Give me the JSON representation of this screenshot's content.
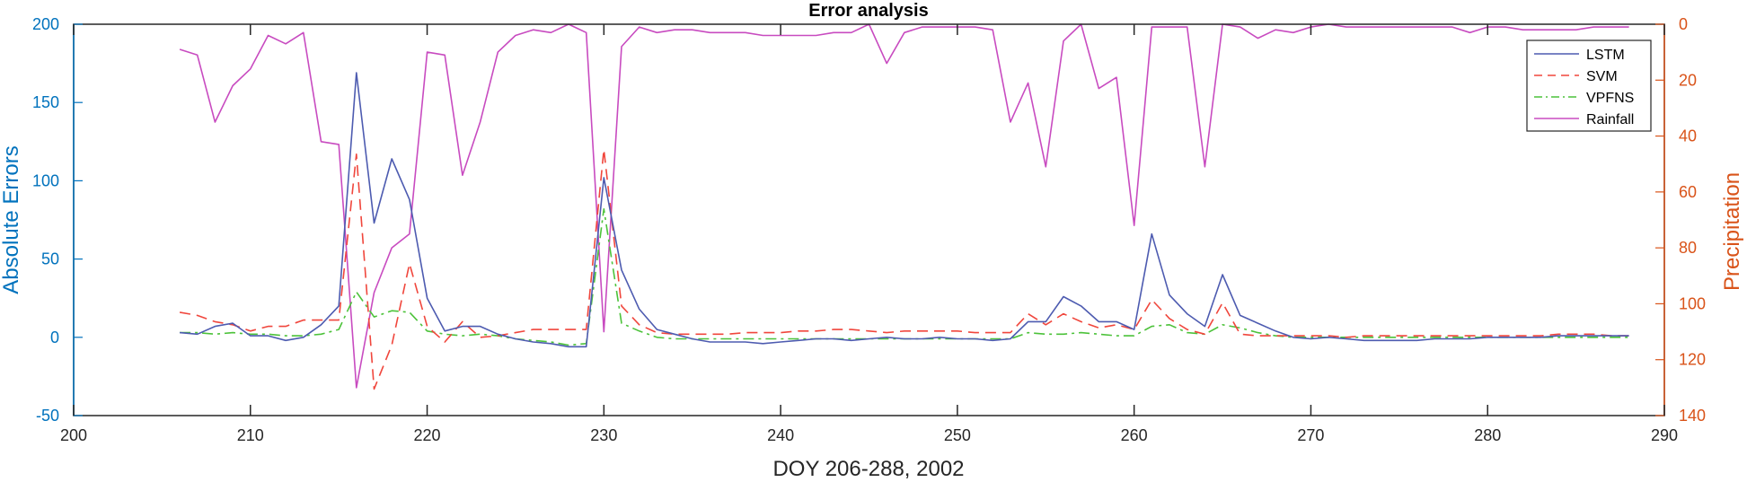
{
  "chart_data": {
    "type": "line",
    "title": "Error analysis",
    "xlabel": "DOY 206-288, 2002",
    "ylabel_left": "Absolute Errors",
    "ylabel_right": "Precipitation",
    "xlim": [
      200,
      290
    ],
    "ylim_left": [
      -50,
      200
    ],
    "ylim_right": [
      0,
      140
    ],
    "right_axis_reversed": true,
    "x_ticks": [
      "200",
      "210",
      "220",
      "230",
      "240",
      "250",
      "260",
      "270",
      "280",
      "290"
    ],
    "y_left_ticks": [
      "200",
      "150",
      "100",
      "50",
      "0",
      "-50"
    ],
    "y_right_ticks": [
      "0",
      "20",
      "40",
      "60",
      "80",
      "100",
      "120",
      "140"
    ],
    "grid": false,
    "legend_position": "top-right",
    "x": [
      206,
      207,
      208,
      209,
      210,
      211,
      212,
      213,
      214,
      215,
      216,
      217,
      218,
      219,
      220,
      221,
      222,
      223,
      224,
      225,
      226,
      227,
      228,
      229,
      230,
      231,
      232,
      233,
      234,
      235,
      236,
      237,
      238,
      239,
      240,
      241,
      242,
      243,
      244,
      245,
      246,
      247,
      248,
      249,
      250,
      251,
      252,
      253,
      254,
      255,
      256,
      257,
      258,
      259,
      260,
      261,
      262,
      263,
      264,
      265,
      266,
      267,
      268,
      269,
      270,
      271,
      272,
      273,
      274,
      275,
      276,
      277,
      278,
      279,
      280,
      281,
      282,
      283,
      284,
      285,
      286,
      287,
      288
    ],
    "series": [
      {
        "name": "LSTM",
        "axis": "left",
        "color": "#4D5BB0",
        "dash": "solid",
        "values": [
          3,
          2,
          7,
          9,
          1,
          1,
          -2,
          0,
          8,
          20,
          169,
          73,
          114,
          88,
          25,
          4,
          7,
          7,
          2,
          -1,
          -3,
          -4,
          -6,
          -6,
          102,
          43,
          18,
          5,
          2,
          -1,
          -3,
          -3,
          -3,
          -4,
          -3,
          -2,
          -1,
          -1,
          -2,
          -1,
          0,
          -1,
          -1,
          0,
          -1,
          -1,
          -2,
          -1,
          10,
          10,
          26,
          20,
          10,
          10,
          5,
          66,
          27,
          15,
          7,
          40,
          14,
          9,
          4,
          0,
          -1,
          0,
          -1,
          -2,
          -2,
          -2,
          -2,
          -1,
          -1,
          -1,
          0,
          0,
          0,
          0,
          1,
          1,
          1,
          1,
          1
        ]
      },
      {
        "name": "SVM",
        "axis": "left",
        "color": "#F0463C",
        "dash": "dashed",
        "values": [
          16,
          14,
          10,
          8,
          4,
          7,
          7,
          11,
          11,
          11,
          117,
          -33,
          -5,
          47,
          7,
          -3,
          10,
          0,
          1,
          3,
          5,
          5,
          5,
          5,
          120,
          20,
          8,
          3,
          2,
          2,
          2,
          2,
          3,
          3,
          3,
          4,
          4,
          5,
          5,
          4,
          3,
          4,
          4,
          4,
          4,
          3,
          3,
          3,
          15,
          8,
          15,
          10,
          6,
          8,
          5,
          24,
          12,
          5,
          2,
          22,
          2,
          1,
          1,
          1,
          1,
          1,
          0,
          1,
          1,
          1,
          1,
          1,
          1,
          1,
          1,
          1,
          1,
          1,
          2,
          2,
          2,
          1,
          1
        ]
      },
      {
        "name": "VPFNS",
        "axis": "left",
        "color": "#4CC23A",
        "dash": "dashdot",
        "values": [
          3,
          3,
          2,
          3,
          2,
          2,
          1,
          1,
          2,
          5,
          29,
          13,
          17,
          16,
          4,
          2,
          1,
          2,
          1,
          -1,
          -2,
          -3,
          -5,
          -4,
          82,
          9,
          4,
          0,
          -1,
          -1,
          -1,
          -1,
          -1,
          -1,
          -1,
          -1,
          -1,
          -1,
          -1,
          -1,
          -1,
          -1,
          -1,
          -1,
          -1,
          -1,
          -1,
          -1,
          3,
          2,
          2,
          3,
          2,
          1,
          1,
          7,
          8,
          3,
          2,
          8,
          6,
          3,
          1,
          0,
          0,
          0,
          0,
          0,
          0,
          0,
          0,
          0,
          0,
          0,
          0,
          0,
          0,
          0,
          0,
          0,
          0,
          0,
          0
        ]
      },
      {
        "name": "Rainfall",
        "axis": "right",
        "color": "#C84BC0",
        "dash": "solid",
        "values": [
          9,
          11,
          35,
          22,
          16,
          4,
          7,
          3,
          42,
          43,
          130,
          96,
          80,
          75,
          10,
          11,
          54,
          35,
          10,
          4,
          2,
          3,
          0,
          3,
          110,
          8,
          1,
          3,
          2,
          2,
          3,
          3,
          3,
          4,
          4,
          4,
          4,
          3,
          3,
          0,
          14,
          3,
          1,
          1,
          1,
          1,
          2,
          35,
          21,
          51,
          6,
          0,
          23,
          19,
          72,
          1,
          1,
          1,
          51,
          0,
          1,
          5,
          2,
          3,
          1,
          0,
          1,
          1,
          1,
          1,
          1,
          1,
          1,
          3,
          1,
          1,
          2,
          2,
          2,
          2,
          1,
          1,
          1
        ]
      }
    ]
  }
}
